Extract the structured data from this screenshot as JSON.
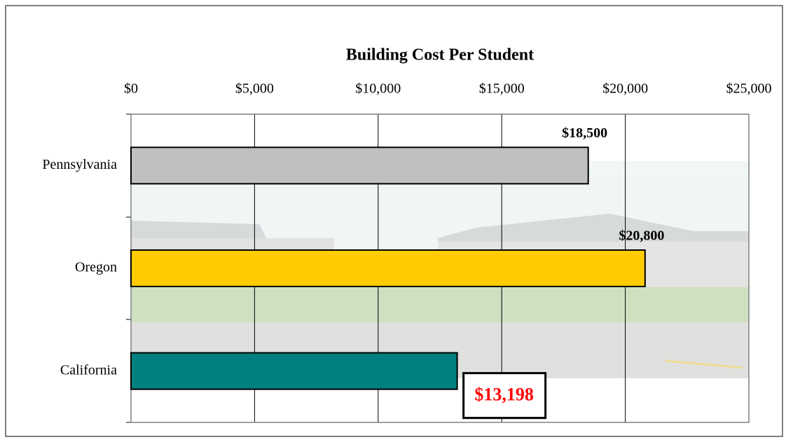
{
  "chart_data": {
    "type": "barh",
    "title": "Building Cost Per Student",
    "categories": [
      "Pennsylvania",
      "Oregon",
      "California"
    ],
    "values": [
      18500,
      20800,
      13198
    ],
    "value_labels": [
      "$18,500",
      "$20,800",
      "$13,198"
    ],
    "colors": [
      "#c0c0c0",
      "#ffcc00",
      "#008080"
    ],
    "value_label_colors": [
      "#000000",
      "#000000",
      "#ff0000"
    ],
    "value_label_boxed": [
      false,
      false,
      true
    ],
    "xlim": [
      0,
      25000
    ],
    "xticks": [
      {
        "value": 0,
        "label": "$0"
      },
      {
        "value": 5000,
        "label": "$5,000"
      },
      {
        "value": 10000,
        "label": "$10,000"
      },
      {
        "value": 15000,
        "label": "$15,000"
      },
      {
        "value": 20000,
        "label": "$20,000"
      },
      {
        "value": 25000,
        "label": "$25,000"
      }
    ],
    "grid": true
  }
}
